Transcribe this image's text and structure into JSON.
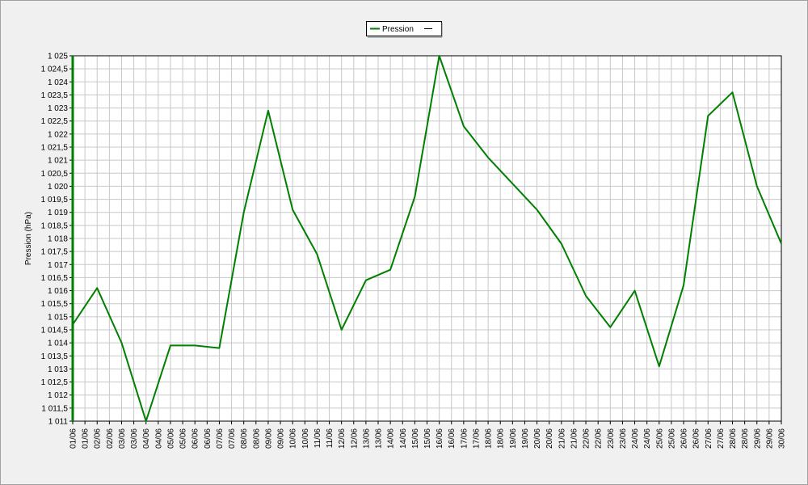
{
  "chart_data": {
    "type": "line",
    "y_label": "Pression (hPa)",
    "categories": [
      "01/06",
      "02/06",
      "03/06",
      "04/06",
      "05/06",
      "06/06",
      "07/06",
      "08/06",
      "09/06",
      "10/06",
      "11/06",
      "12/06",
      "13/06",
      "14/06",
      "15/06",
      "16/06",
      "17/06",
      "18/06",
      "19/06",
      "20/06",
      "21/06",
      "22/06",
      "23/06",
      "24/06",
      "25/06",
      "26/06",
      "27/06",
      "28/06",
      "29/06",
      "30/06"
    ],
    "xtick_labels": [
      "01/06",
      "01/06",
      "02/06",
      "02/06",
      "03/06",
      "03/06",
      "04/06",
      "04/06",
      "05/06",
      "05/06",
      "06/06",
      "06/06",
      "07/06",
      "07/06",
      "08/06",
      "08/06",
      "09/06",
      "09/06",
      "10/06",
      "10/06",
      "11/06",
      "11/06",
      "12/06",
      "12/06",
      "13/06",
      "13/06",
      "14/06",
      "14/06",
      "15/06",
      "15/06",
      "16/06",
      "16/06",
      "17/06",
      "17/06",
      "18/06",
      "18/06",
      "19/06",
      "19/06",
      "20/06",
      "20/06",
      "21/06",
      "21/06",
      "22/06",
      "22/06",
      "23/06",
      "23/06",
      "24/06",
      "24/06",
      "25/06",
      "25/06",
      "26/06",
      "26/06",
      "27/06",
      "27/06",
      "28/06",
      "28/06",
      "29/06",
      "29/06",
      "30/06"
    ],
    "series": [
      {
        "name": "Pression",
        "color": "#008000",
        "values": [
          1014.7,
          1016.1,
          1014,
          1011,
          1013.9,
          1013.9,
          1013.8,
          1019,
          1022.9,
          1019.1,
          1017.4,
          1014.5,
          1016.4,
          1016.8,
          1019.6,
          1025,
          1022.3,
          1021.1,
          1020.1,
          1019.1,
          1017.8,
          1015.8,
          1014.6,
          1016,
          1013.1,
          1016.2,
          1022.7,
          1023.6,
          1020,
          1017.8
        ]
      }
    ],
    "ylim": [
      1011,
      1025
    ],
    "yticks": [
      {
        "value": 1011,
        "label": "1 011"
      },
      {
        "value": 1011.5,
        "label": "1 011,5"
      },
      {
        "value": 1012,
        "label": "1 012"
      },
      {
        "value": 1012.5,
        "label": "1 012,5"
      },
      {
        "value": 1013,
        "label": "1 013"
      },
      {
        "value": 1013.5,
        "label": "1 013,5"
      },
      {
        "value": 1014,
        "label": "1 014"
      },
      {
        "value": 1014.5,
        "label": "1 014,5"
      },
      {
        "value": 1015,
        "label": "1 015"
      },
      {
        "value": 1015.5,
        "label": "1 015,5"
      },
      {
        "value": 1016,
        "label": "1 016"
      },
      {
        "value": 1016.5,
        "label": "1 016,5"
      },
      {
        "value": 1017,
        "label": "1 017"
      },
      {
        "value": 1017.5,
        "label": "1 017,5"
      },
      {
        "value": 1018,
        "label": "1 018"
      },
      {
        "value": 1018.5,
        "label": "1 018,5"
      },
      {
        "value": 1019,
        "label": "1 019"
      },
      {
        "value": 1019.5,
        "label": "1 019,5"
      },
      {
        "value": 1020,
        "label": "1 020"
      },
      {
        "value": 1020.5,
        "label": "1 020,5"
      },
      {
        "value": 1021,
        "label": "1 021"
      },
      {
        "value": 1021.5,
        "label": "1 021,5"
      },
      {
        "value": 1022,
        "label": "1 022"
      },
      {
        "value": 1022.5,
        "label": "1 022,5"
      },
      {
        "value": 1023,
        "label": "1 023"
      },
      {
        "value": 1023.5,
        "label": "1 023,5"
      },
      {
        "value": 1024,
        "label": "1 024"
      },
      {
        "value": 1024.5,
        "label": "1 024,5"
      },
      {
        "value": 1025,
        "label": "1 025"
      }
    ],
    "grid": true
  }
}
